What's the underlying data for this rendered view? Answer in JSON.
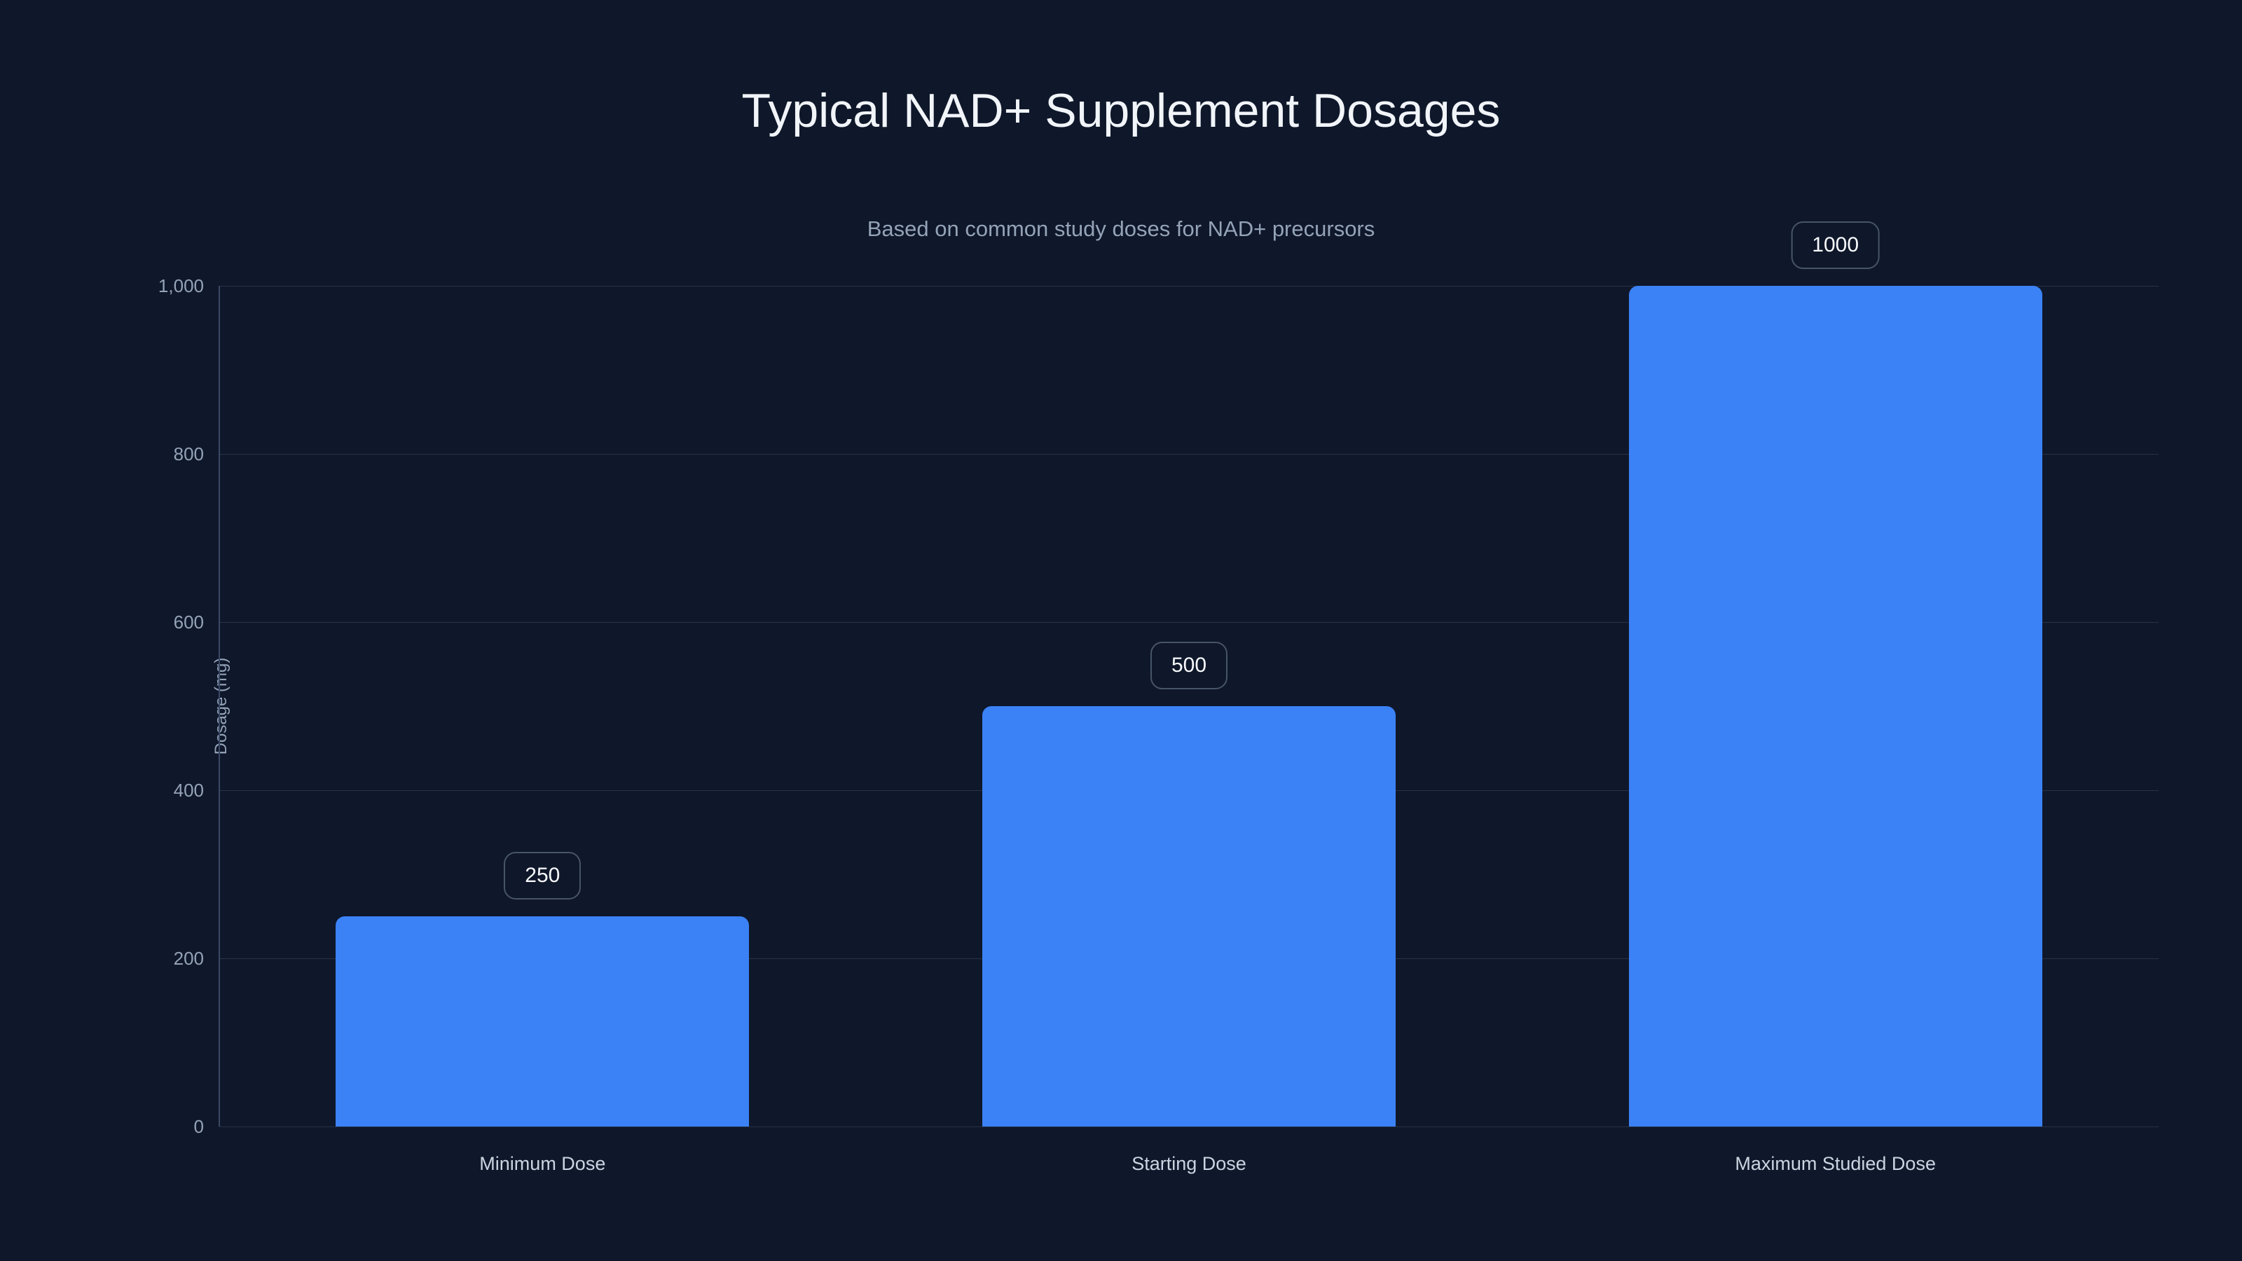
{
  "colors": {
    "background": "#0f172a",
    "bar": "#3b82f6",
    "grid": "#263348",
    "axis": "#3a4a66",
    "title_text": "#f1f5f9",
    "subtitle_text": "#94a3b8",
    "tick_text": "#94a3b8",
    "category_text": "#cbd5e1",
    "badge_text": "#f8fafc",
    "badge_border": "#475569"
  },
  "chart_data": {
    "type": "bar",
    "title": "Typical NAD+ Supplement Dosages",
    "subtitle": "Based on common study doses for NAD+ precursors",
    "categories": [
      "Minimum Dose",
      "Starting Dose",
      "Maximum Studied Dose"
    ],
    "values": [
      250,
      500,
      1000
    ],
    "value_labels": [
      "250",
      "500",
      "1000"
    ],
    "xlabel": "",
    "ylabel": "Dosage (mg)",
    "ylim": [
      0,
      1000
    ],
    "yticks": [
      0,
      200,
      400,
      600,
      800,
      1000
    ],
    "ytick_labels": [
      "0",
      "200",
      "400",
      "600",
      "800",
      "1,000"
    ],
    "grid": true,
    "legend": false,
    "bar_color": "#3b82f6"
  }
}
